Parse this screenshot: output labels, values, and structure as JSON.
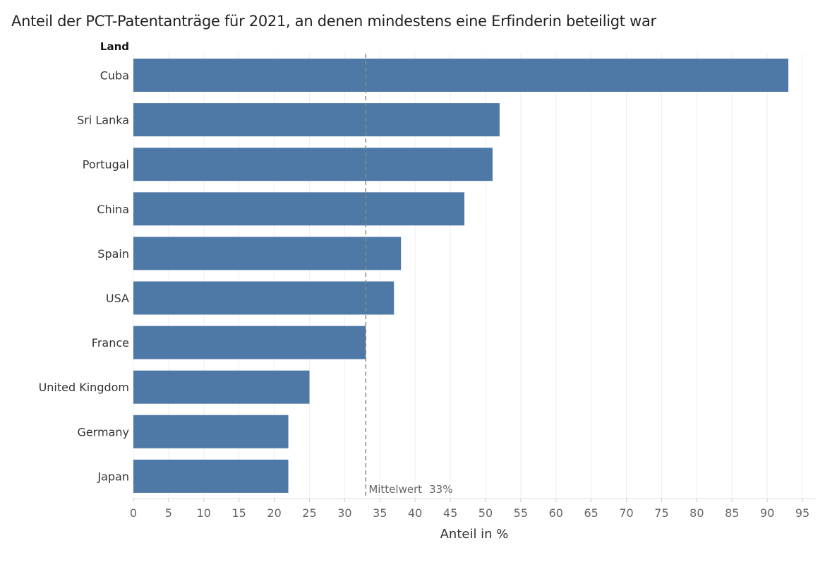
{
  "chart_data": {
    "type": "bar",
    "orientation": "horizontal",
    "title": "Anteil der PCT-Patentanträge für 2021, an denen mindestens eine Erfinderin beteiligt war",
    "category_header": "Land",
    "xlabel": "Anteil in %",
    "categories": [
      "Cuba",
      "Sri Lanka",
      "Portugal",
      "China",
      "Spain",
      "USA",
      "France",
      "United Kingdom",
      "Germany",
      "Japan"
    ],
    "values": [
      93,
      52,
      51,
      47,
      38,
      37,
      33,
      25,
      22,
      22
    ],
    "xlim": [
      0,
      97
    ],
    "xticks": [
      0,
      5,
      10,
      15,
      20,
      25,
      30,
      35,
      40,
      45,
      50,
      55,
      60,
      65,
      70,
      75,
      80,
      85,
      90,
      95
    ],
    "grid": true,
    "reference_line": {
      "value": 33,
      "label": "Mittelwert",
      "value_label": "33%"
    },
    "bar_color": "#4e79a7",
    "grid_color": "#eeeeee",
    "reference_color": "#888888"
  }
}
